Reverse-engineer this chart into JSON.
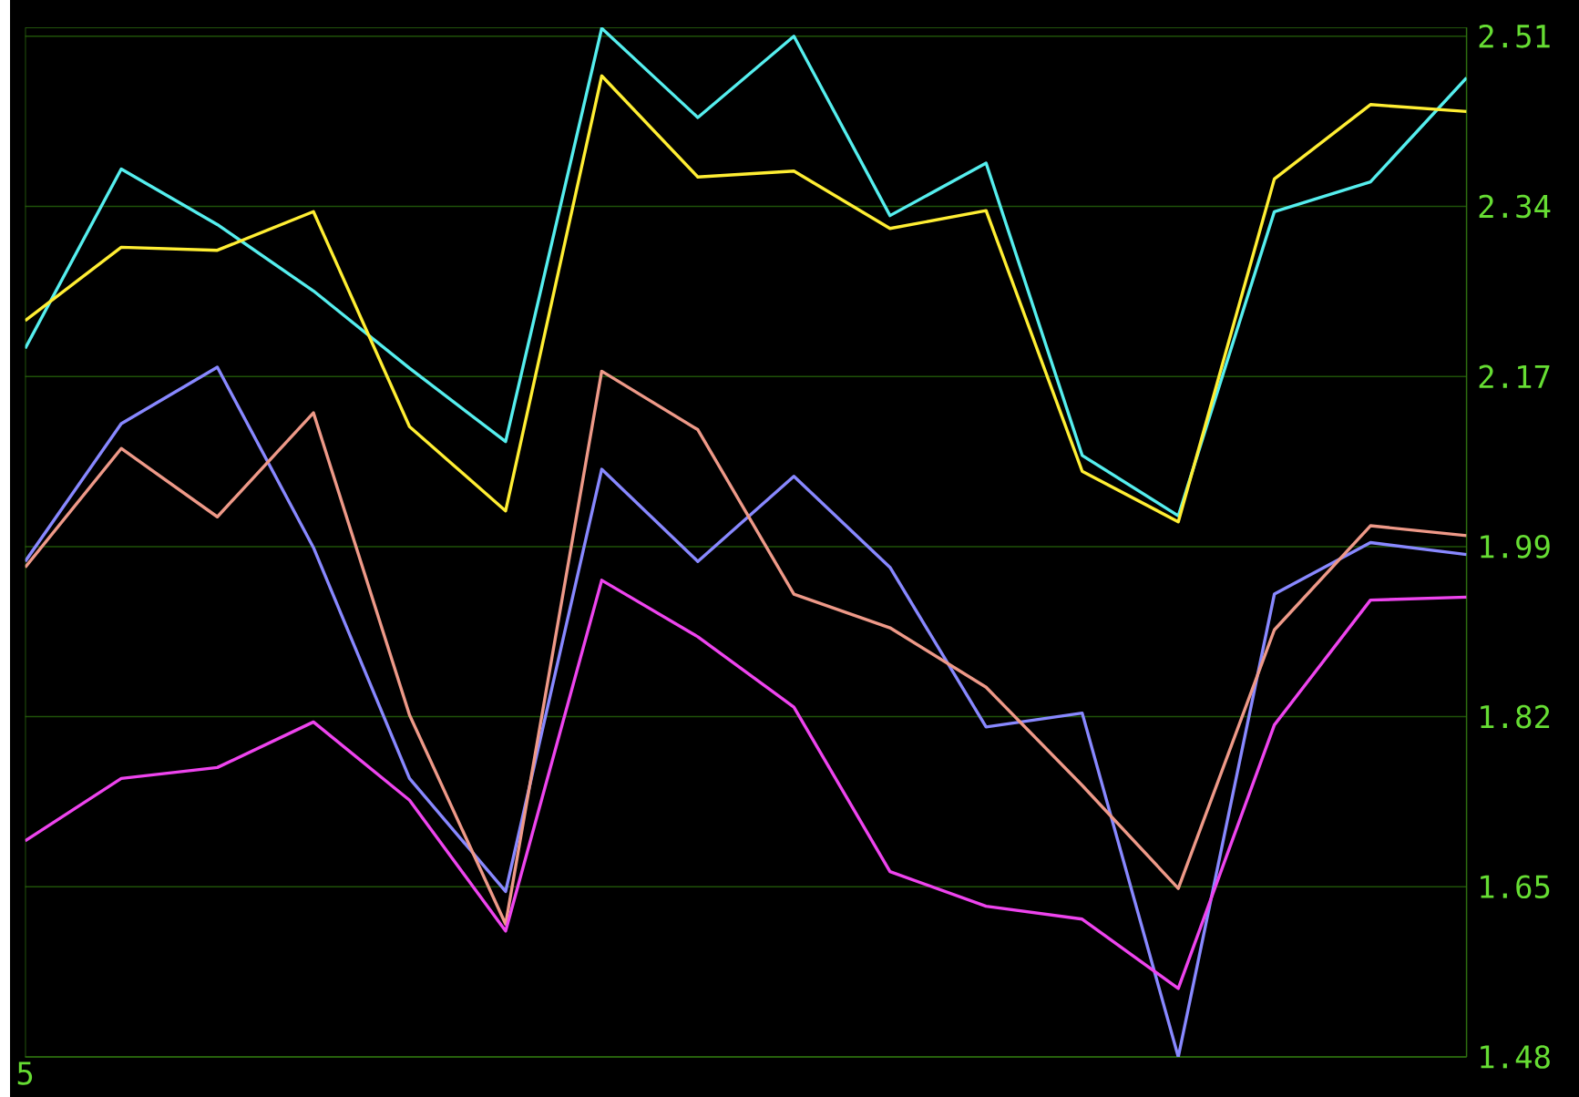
{
  "chart_data": {
    "type": "line",
    "categories": [
      "5",
      null,
      null,
      null,
      null,
      null,
      null,
      null,
      null,
      null,
      null,
      null,
      null,
      null,
      null,
      null
    ],
    "series": [
      {
        "color": "#55eeee",
        "values": [
          2.195,
          2.376,
          2.32,
          2.253,
          2.175,
          2.101,
          2.518,
          2.428,
          2.51,
          2.329,
          2.382,
          2.087,
          2.026,
          2.333,
          2.363,
          2.468
        ]
      },
      {
        "color": "#ffee33",
        "values": [
          2.223,
          2.297,
          2.294,
          2.333,
          2.116,
          2.031,
          2.47,
          2.368,
          2.374,
          2.316,
          2.334,
          2.071,
          2.02,
          2.366,
          2.441,
          2.434
        ]
      },
      {
        "color": "#8888ff",
        "values": [
          1.98,
          2.119,
          2.176,
          1.994,
          1.761,
          1.647,
          2.073,
          1.98,
          2.066,
          1.974,
          1.813,
          1.827,
          1.48,
          1.947,
          1.999,
          1.987
        ]
      },
      {
        "color": "#ee9988",
        "values": [
          1.974,
          2.094,
          2.025,
          2.13,
          1.825,
          1.614,
          2.172,
          2.113,
          1.947,
          1.913,
          1.853,
          1.754,
          1.65,
          1.911,
          2.016,
          2.006
        ]
      },
      {
        "color": "#ee44ee",
        "values": [
          1.698,
          1.761,
          1.772,
          1.818,
          1.739,
          1.607,
          1.961,
          1.904,
          1.833,
          1.667,
          1.632,
          1.619,
          1.549,
          1.815,
          1.941,
          1.944
        ]
      }
    ],
    "ylim": [
      1.48,
      2.519
    ],
    "yticks": [
      1.48,
      {
        "value": 1.6517,
        "label": "1.65"
      },
      {
        "value": 1.8233,
        "label": "1.82"
      },
      {
        "value": 1.995,
        "label": "1.99"
      },
      {
        "value": 2.1667,
        "label": "2.17"
      },
      {
        "value": 2.3383,
        "label": "2.34"
      },
      2.51
    ],
    "grid": "y",
    "marker": "none",
    "line_style": "solid"
  }
}
